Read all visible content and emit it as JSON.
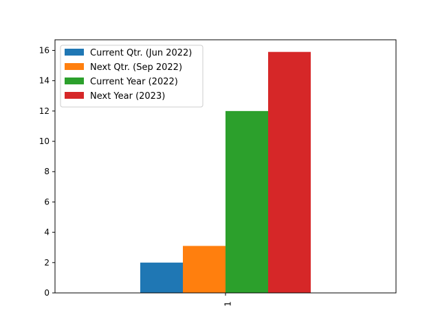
{
  "chart_data": {
    "type": "bar",
    "title": "",
    "xlabel": "",
    "ylabel": "",
    "categories": [
      "1"
    ],
    "ylim": [
      0,
      16.7
    ],
    "yticks": [
      0,
      2,
      4,
      6,
      8,
      10,
      12,
      14,
      16
    ],
    "grid": false,
    "legend_position": "top-left",
    "series": [
      {
        "name": "Current Qtr. (Jun 2022)",
        "values": [
          2.0
        ],
        "color": "#1f77b4"
      },
      {
        "name": "Next Qtr. (Sep 2022)",
        "values": [
          3.1
        ],
        "color": "#ff7f0e"
      },
      {
        "name": "Current Year (2022)",
        "values": [
          12.0
        ],
        "color": "#2ca02c"
      },
      {
        "name": "Next Year (2023)",
        "values": [
          15.9
        ],
        "color": "#d62728"
      }
    ]
  }
}
